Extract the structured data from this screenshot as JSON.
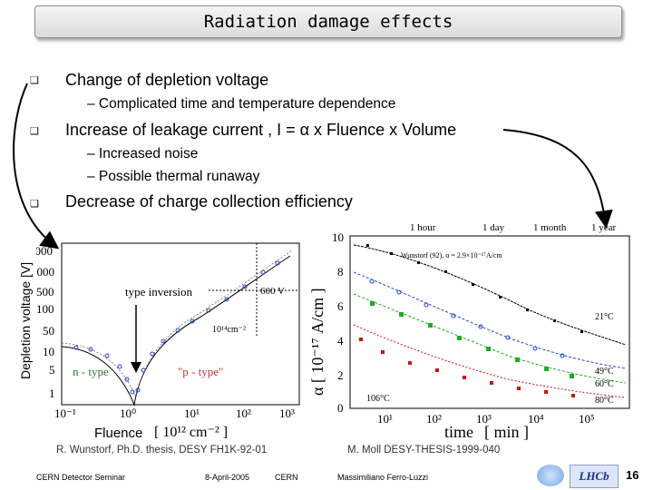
{
  "title": "Radiation damage effects",
  "bullets": [
    {
      "text": "Change of depletion voltage"
    },
    {
      "sub": "– Complicated time and temperature dependence"
    },
    {
      "text": "Increase of leakage current  , I = α x Fluence x Volume"
    },
    {
      "sub": "– Increased noise"
    },
    {
      "sub": "– Possible thermal runaway"
    },
    {
      "text": "Decrease of charge collection efficiency"
    }
  ],
  "left_plot": {
    "ylabel": "Depletion voltage [V]",
    "xlabel": "Fluence",
    "xunit": "[ 10¹² cm⁻² ]",
    "yticks": [
      "5000",
      "1000",
      "500",
      "100",
      "50",
      "10",
      "5",
      "1"
    ],
    "xticks": [
      "10⁻¹",
      "10⁰",
      "10¹",
      "10²",
      "10³"
    ],
    "annotations": {
      "type_inversion": "type inversion",
      "voltage": "600 V",
      "fluence_mark": "10¹⁴cm⁻²",
      "n_type": "n - type",
      "p_type": "\"p - type\""
    },
    "credit": "R. Wunstorf, Ph.D. thesis, DESY FH1K-92-01"
  },
  "right_plot": {
    "ylabel": "α [ 10⁻¹⁷ A/cm ]",
    "xlabel": "time",
    "xunit": "[ min ]",
    "yticks": [
      "10",
      "8",
      "6",
      "4",
      "2",
      "0"
    ],
    "xticks": [
      "10¹",
      "10²",
      "10³",
      "10⁴",
      "10⁵"
    ],
    "top_labels": [
      "1 hour",
      "1 day",
      "1 month",
      "1 year"
    ],
    "series_labels": [
      "21°C",
      "49°C",
      "60°C",
      "80°C",
      "106°C"
    ],
    "fit_label": "Wunstorf (92), α = 2.9×10⁻¹⁷A/cm",
    "credit": "M. Moll DESY-THESIS-1999-040"
  },
  "footer": {
    "left": "CERN Detector Seminar",
    "date": "8-April-2005",
    "org": "CERN",
    "author": "Massimiliano Ferro-Luzzi",
    "page": "16",
    "logo_text": "LHCb"
  },
  "colors": {
    "arrow": "#000000",
    "green": "#22aa22",
    "red": "#cc1111",
    "blue": "#2244cc"
  }
}
